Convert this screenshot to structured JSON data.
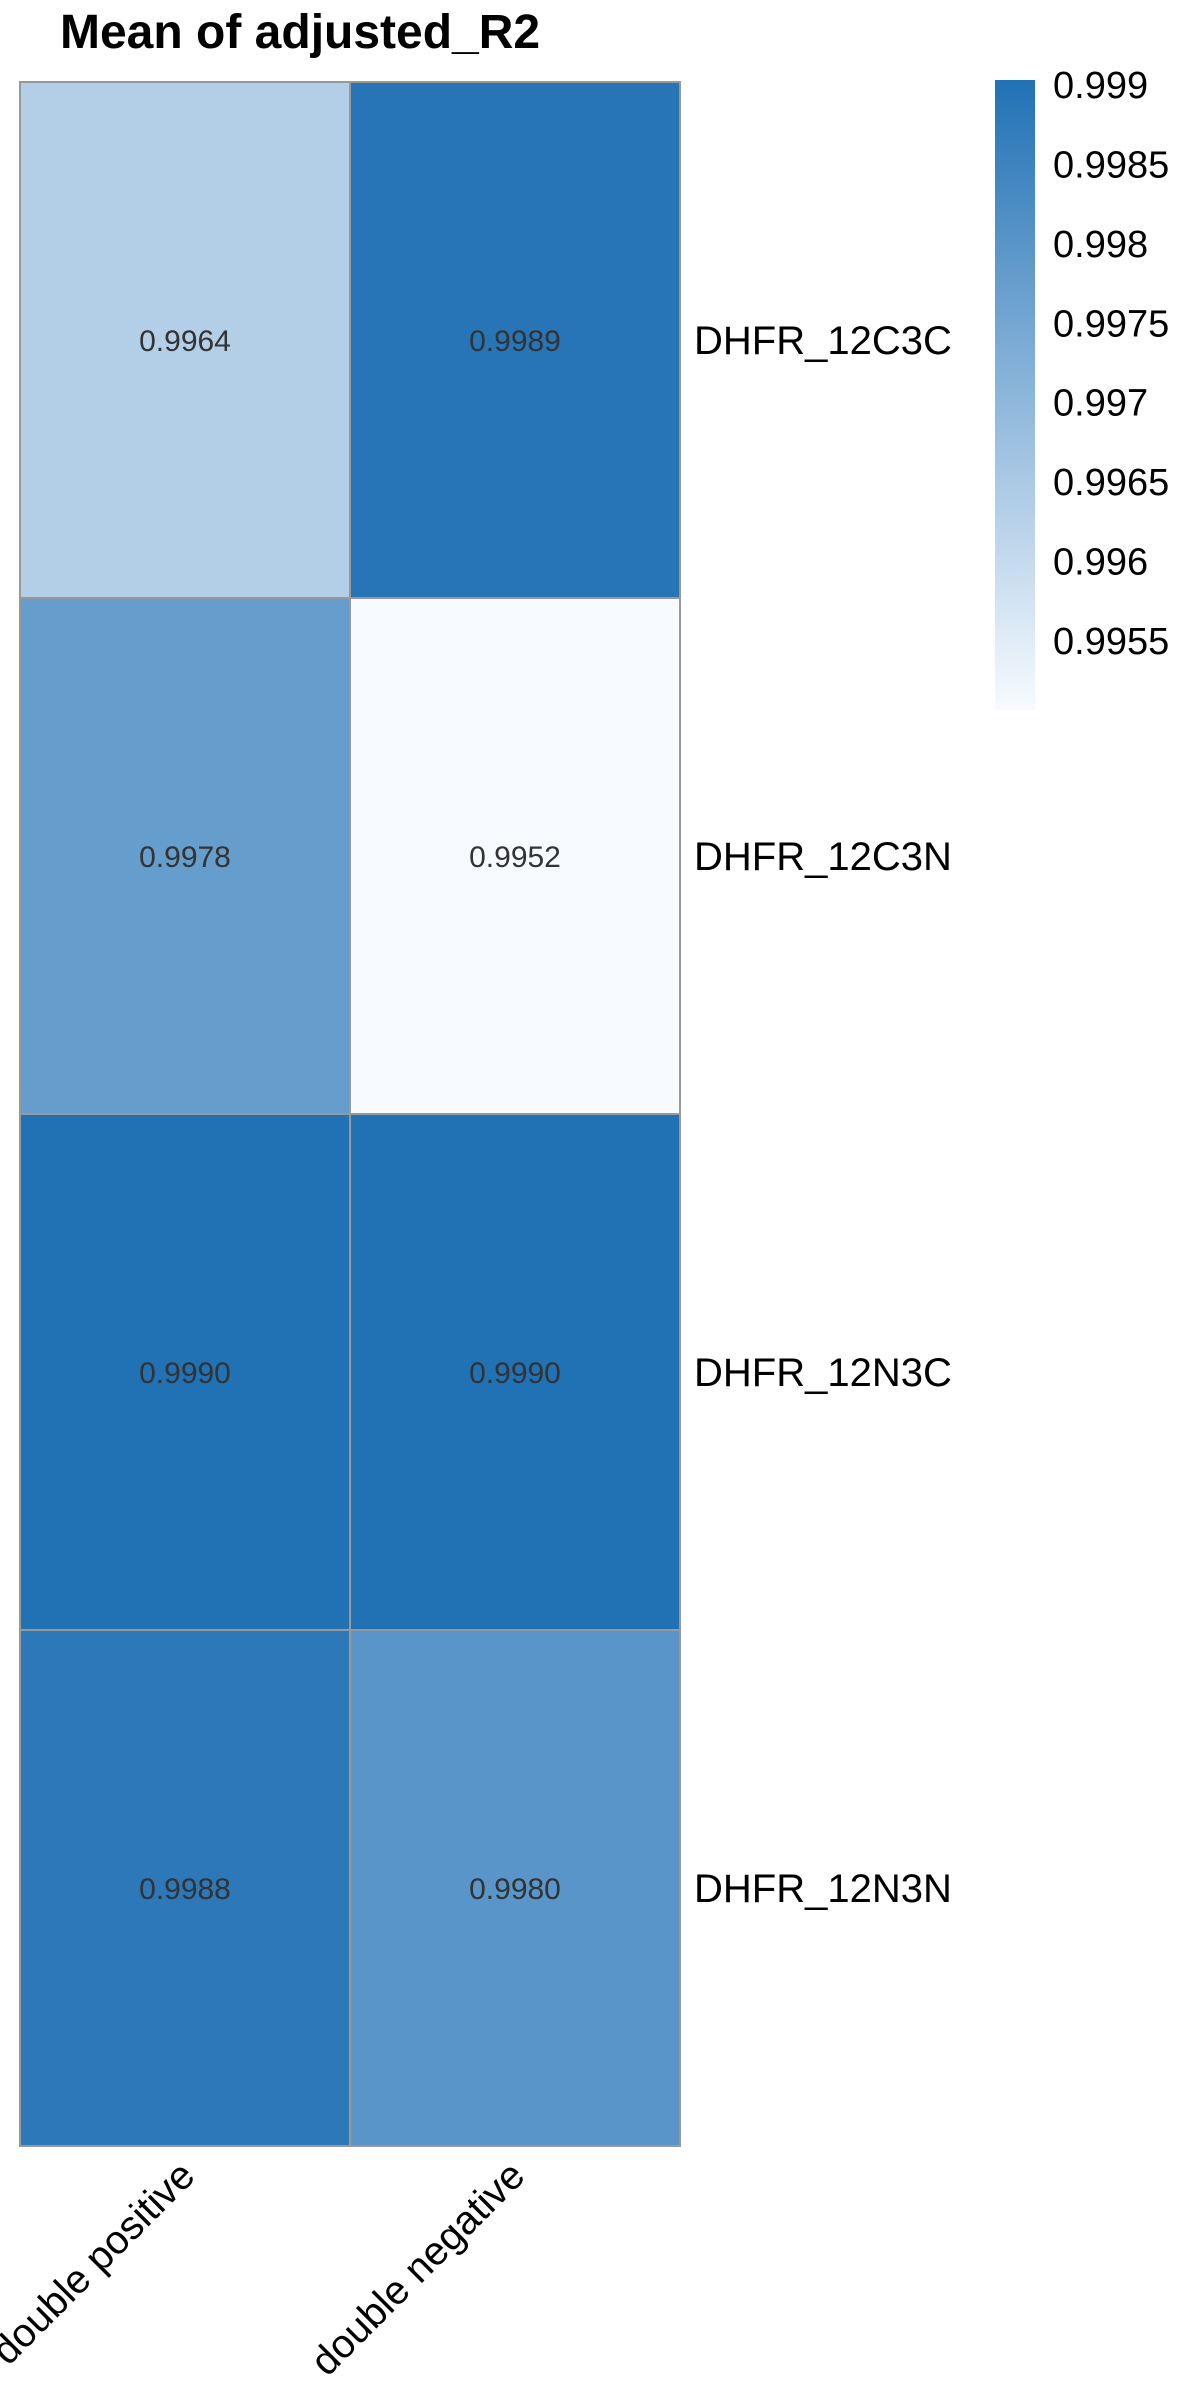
{
  "chart_data": {
    "type": "heatmap",
    "title": "Mean of  adjusted_R2",
    "rows": [
      "DHFR_12C3C",
      "DHFR_12C3N",
      "DHFR_12N3C",
      "DHFR_12N3N"
    ],
    "columns": [
      "double positive",
      "double negative"
    ],
    "values": [
      [
        0.9964,
        0.9989
      ],
      [
        0.9978,
        0.9952
      ],
      [
        0.999,
        0.999
      ],
      [
        0.9988,
        0.998
      ]
    ],
    "cell_labels": [
      [
        "0.9964",
        "0.9989"
      ],
      [
        "0.9978",
        "0.9952"
      ],
      [
        "0.9990",
        "0.9990"
      ],
      [
        "0.9988",
        "0.9980"
      ]
    ],
    "color_range": [
      0.9952,
      0.999
    ],
    "color_low": "#f7fbff",
    "color_high": "#2171b5",
    "legend": {
      "position": "top-right",
      "ticks": [
        "0.999",
        "0.9985",
        "0.998",
        "0.9975",
        "0.997",
        "0.9965",
        "0.996",
        "0.9955"
      ],
      "tick_values": [
        0.999,
        0.9985,
        0.998,
        0.9975,
        0.997,
        0.9965,
        0.996,
        0.9955
      ]
    },
    "cell_border_color": "#999999"
  }
}
